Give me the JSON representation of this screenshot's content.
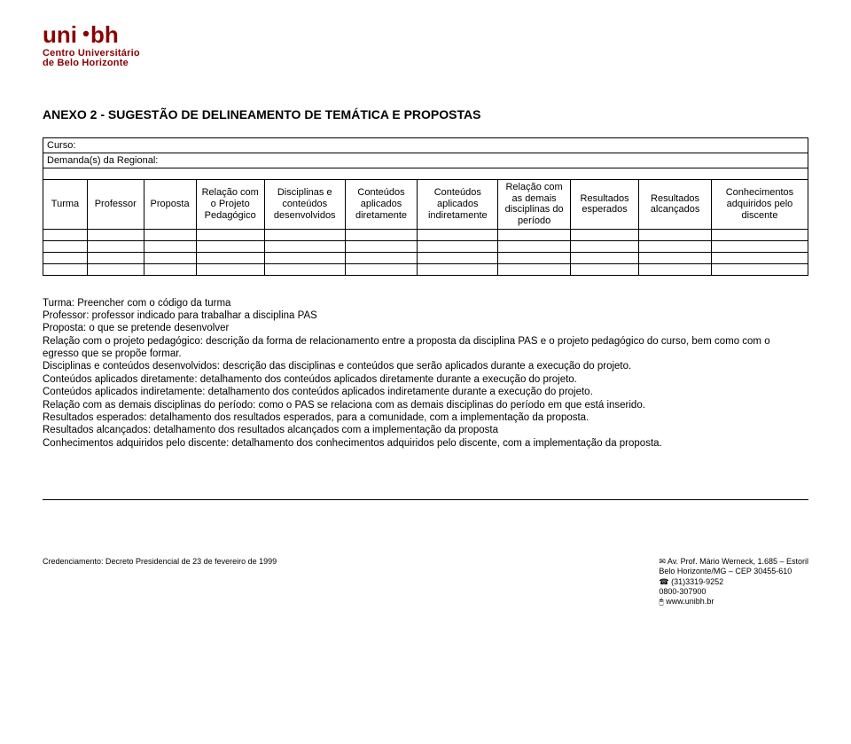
{
  "logo": {
    "word": "uni",
    "suffix": "bh",
    "dot_color": "#8b0000",
    "text_color": "#8b0000",
    "sub1": "Centro Universitário",
    "sub2": "de Belo Horizonte"
  },
  "heading": "ANEXO 2 - SUGESTÃO DE DELINEAMENTO DE TEMÁTICA E PROPOSTAS",
  "table": {
    "row1_label": "Curso:",
    "row2_label": "Demanda(s) da Regional:",
    "headers": [
      "Turma",
      "Professor",
      "Proposta",
      "Relação com o Projeto Pedagógico",
      "Disciplinas e conteúdos desenvolvidos",
      "Conteúdos aplicados diretamente",
      "Conteúdos aplicados indiretamente",
      "Relação com as demais disciplinas do período",
      "Resultados esperados",
      "Resultados alcançados",
      "Conhecimentos adquiridos pelo discente"
    ],
    "col_widths_pct": [
      5.5,
      7,
      6.5,
      8.5,
      10,
      9,
      10,
      9,
      8.5,
      9,
      12
    ]
  },
  "explanations": [
    "Turma: Preencher com o código da turma",
    "Professor: professor indicado para trabalhar a disciplina PAS",
    "Proposta: o que se pretende desenvolver",
    "Relação com o projeto pedagógico: descrição da forma de relacionamento entre a proposta da disciplina PAS e o projeto pedagógico do curso, bem como com o egresso que se propõe formar.",
    "Disciplinas e conteúdos desenvolvidos: descrição das disciplinas e conteúdos que serão aplicados durante a execução do projeto.",
    " Conteúdos aplicados diretamente: detalhamento dos conteúdos aplicados diretamente durante a execução do projeto.",
    "Conteúdos aplicados indiretamente: detalhamento dos conteúdos aplicados indiretamente durante a execução do projeto.",
    "Relação com as demais disciplinas do período: como o PAS se relaciona com as demais disciplinas do período em que está inserido.",
    "Resultados esperados: detalhamento dos resultados esperados, para a comunidade, com a implementação da proposta.",
    "Resultados alcançados: detalhamento dos resultados alcançados com a implementação da proposta",
    "Conhecimentos adquiridos pelo discente: detalhamento dos conhecimentos adquiridos pelo discente, com a implementação da proposta."
  ],
  "footer": {
    "left": "Credenciamento: Decreto Presidencial de 23 de fevereiro de 1999",
    "right": [
      "✉  Av. Prof. Mário Werneck, 1.685 – Estoril",
      "Belo Horizonte/MG – CEP 30455-610",
      "☎ (31)3319-9252",
      "0800-307900",
      "🖰  www.unibh.br"
    ]
  }
}
